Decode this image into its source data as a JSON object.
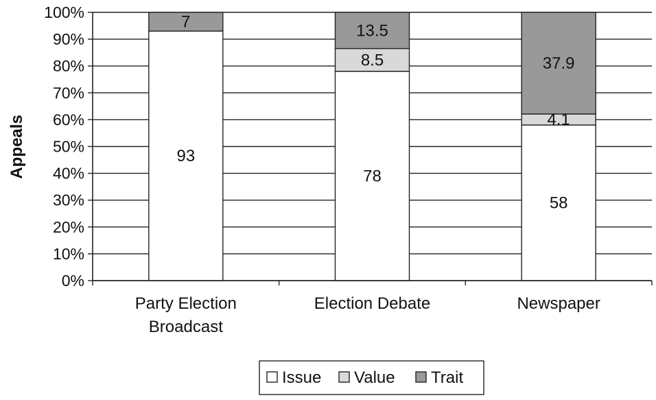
{
  "chart_data": {
    "type": "bar",
    "stacked": true,
    "percent": true,
    "categories": [
      [
        "Party Election",
        "Broadcast"
      ],
      [
        "Election Debate"
      ],
      [
        "Newspaper"
      ]
    ],
    "series": [
      {
        "name": "Issue",
        "values": [
          93,
          78,
          58
        ],
        "color": "#ffffff"
      },
      {
        "name": "Value",
        "values": [
          0,
          8.5,
          4.1
        ],
        "color": "#d9d9d9"
      },
      {
        "name": "Trait",
        "values": [
          7,
          13.5,
          37.9
        ],
        "color": "#999999"
      }
    ],
    "data_labels": [
      [
        "93",
        "",
        "7"
      ],
      [
        "78",
        "8.5",
        "13.5"
      ],
      [
        "58",
        "4.1",
        "37.9"
      ]
    ],
    "ylabel": "Appeals",
    "xlabel": "",
    "ylim": [
      0,
      100
    ],
    "yticks": [
      "0%",
      "10%",
      "20%",
      "30%",
      "40%",
      "50%",
      "60%",
      "70%",
      "80%",
      "90%",
      "100%"
    ],
    "grid": true,
    "legend_position": "bottom"
  }
}
